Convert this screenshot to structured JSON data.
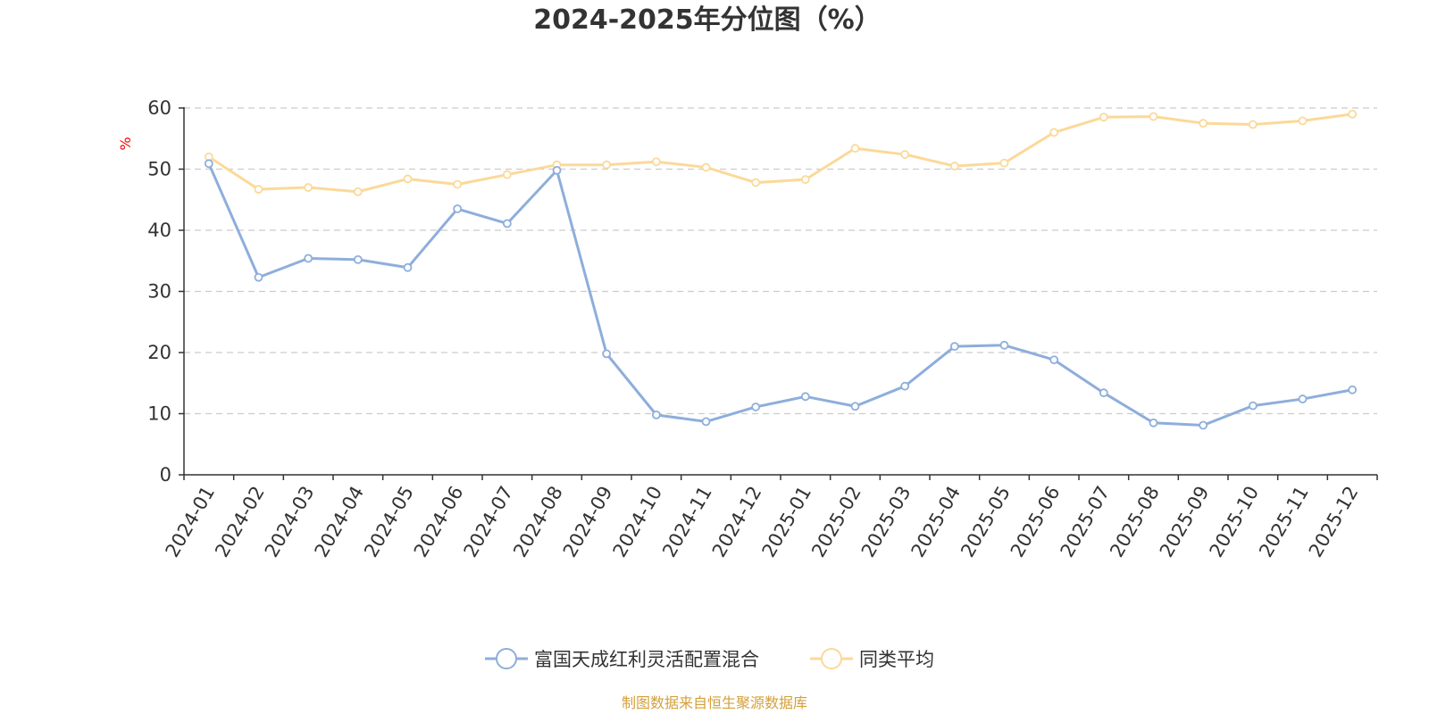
{
  "chart_data": {
    "type": "line",
    "title": "2024-2025年分位图（%）",
    "ylabel": "%",
    "xlabel": "",
    "ylim": [
      0,
      60
    ],
    "yticks": [
      0,
      10,
      20,
      30,
      40,
      50,
      60
    ],
    "grid": true,
    "legend_position": "bottom-center",
    "categories": [
      "2024-01",
      "2024-02",
      "2024-03",
      "2024-04",
      "2024-05",
      "2024-06",
      "2024-07",
      "2024-08",
      "2024-09",
      "2024-10",
      "2024-11",
      "2024-12",
      "2025-01",
      "2025-02",
      "2025-03",
      "2025-04",
      "2025-05",
      "2025-06",
      "2025-07",
      "2025-08",
      "2025-09",
      "2025-10",
      "2025-11",
      "2025-12"
    ],
    "series": [
      {
        "name": "富国天成红利灵活配置混合",
        "color": "#8eaedb",
        "values": [
          50.9,
          32.3,
          35.4,
          35.2,
          33.9,
          43.5,
          41.1,
          49.8,
          19.8,
          9.8,
          8.7,
          11.1,
          12.8,
          11.2,
          14.5,
          21.0,
          21.2,
          18.8,
          13.4,
          8.5,
          8.1,
          11.3,
          12.4,
          13.9
        ]
      },
      {
        "name": "同类平均",
        "color": "#fbd999",
        "values": [
          52.0,
          46.7,
          47.0,
          46.3,
          48.4,
          47.5,
          49.1,
          50.7,
          50.7,
          51.2,
          50.3,
          47.8,
          48.3,
          53.4,
          52.4,
          50.5,
          51.0,
          56.0,
          58.5,
          58.6,
          57.5,
          57.3,
          57.9,
          59.0
        ]
      }
    ]
  },
  "source_text": "制图数据来自恒生聚源数据库",
  "colors": {
    "axis": "#333333",
    "grid": "#cccccc",
    "title": "#333333",
    "unit_label": "#ff0000",
    "source": "#d4a03a"
  }
}
